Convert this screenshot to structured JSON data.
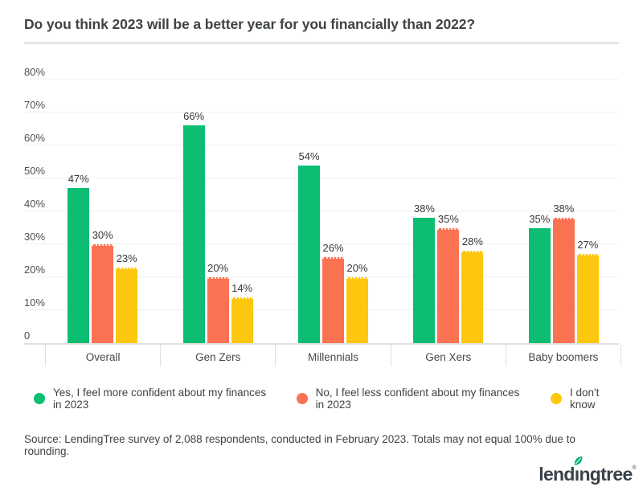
{
  "header": {
    "title": "Do you think 2023 will be a better year for you financially than 2022?"
  },
  "chart_data": {
    "type": "bar",
    "categories": [
      "Overall",
      "Gen Zers",
      "Millennials",
      "Gen Xers",
      "Baby boomers"
    ],
    "series": [
      {
        "name": "Yes, I feel more confident about my finances in 2023",
        "color": "#0cbd72",
        "values": [
          47,
          66,
          54,
          38,
          35
        ]
      },
      {
        "name": "No, I feel less confident about my finances in 2023",
        "color": "#fb7252",
        "values": [
          30,
          20,
          26,
          35,
          38
        ]
      },
      {
        "name": "I don't know",
        "color": "#fdc70f",
        "values": [
          23,
          14,
          20,
          28,
          27
        ]
      }
    ],
    "value_label_format": "percent",
    "ylim": [
      0,
      80
    ],
    "yticks": [
      0,
      10,
      20,
      30,
      40,
      50,
      60,
      70,
      80
    ],
    "ytick_format": "percent",
    "grid": true,
    "legend_position": "bottom",
    "value_labels": true
  },
  "footer": {
    "source": "Source: LendingTree survey of 2,088 respondents, conducted in February 2023. Totals may not equal 100% due to rounding.",
    "logo": {
      "brand": "lendingtree",
      "pre": "lend",
      "i": "ı",
      "post": "ngtree",
      "mark": "®",
      "leaf_color": "#00b274"
    }
  }
}
